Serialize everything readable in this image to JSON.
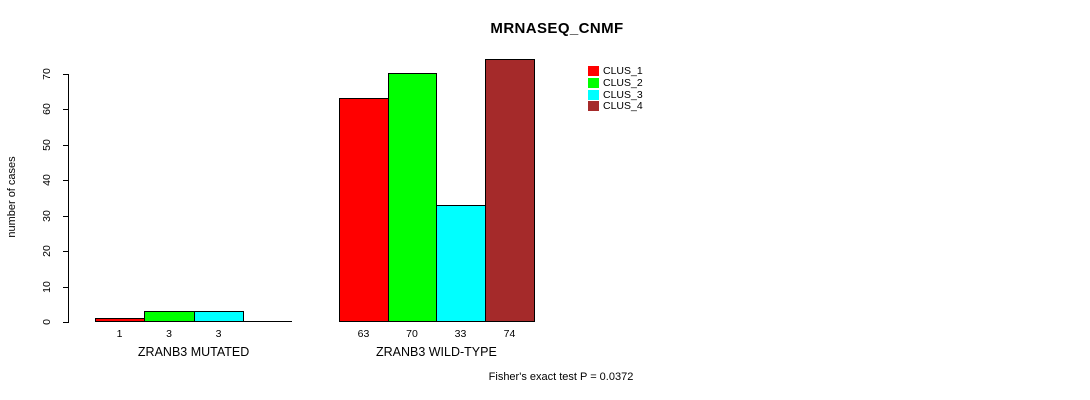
{
  "chart_data": {
    "type": "bar",
    "title": "MRNASEQ_CNMF",
    "ylabel": "number of cases",
    "yticks": [
      0,
      10,
      20,
      30,
      40,
      50,
      60,
      70
    ],
    "ylim": [
      0,
      74
    ],
    "grid": false,
    "categories": [
      "ZRANB3 MUTATED",
      "ZRANB3 WILD-TYPE"
    ],
    "series_names": [
      "CLUS_1",
      "CLUS_2",
      "CLUS_3",
      "CLUS_4"
    ],
    "series_colors": [
      "#FF0000",
      "#00FF00",
      "#00FFFF",
      "#A52A2A"
    ],
    "values": [
      [
        1,
        3,
        3,
        0
      ],
      [
        63,
        70,
        33,
        74
      ]
    ],
    "bar_labels": [
      [
        "1",
        "3",
        "3",
        ""
      ],
      [
        "63",
        "70",
        "33",
        "74"
      ]
    ],
    "bar_border_color": "#000000",
    "axis_color": "#000000",
    "legend_position": "upper-right",
    "annotation": "Fisher's exact test P = 0.0372"
  }
}
